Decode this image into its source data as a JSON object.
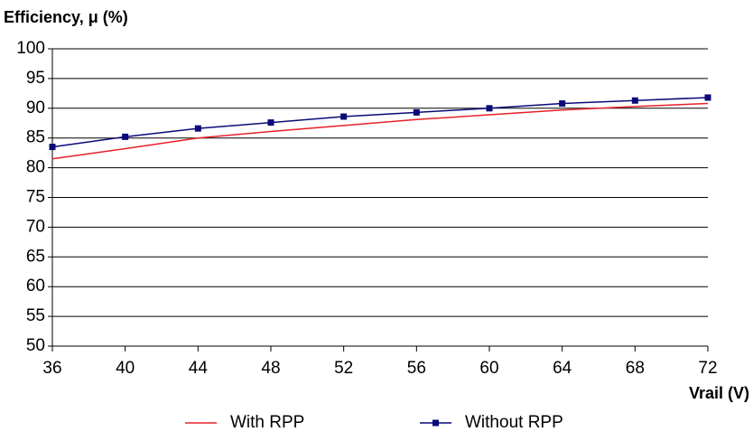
{
  "chart_data": {
    "type": "line",
    "y_label": "Efficiency, μ (%)",
    "x_label": "Vrail (V)",
    "x": [
      36,
      40,
      44,
      48,
      52,
      56,
      60,
      64,
      68,
      72
    ],
    "series": [
      {
        "name": "With RPP",
        "color": "#e8202a",
        "marker": false,
        "values": [
          81.5,
          83.2,
          85.0,
          86.1,
          87.1,
          88.1,
          88.9,
          89.7,
          90.3,
          90.8
        ]
      },
      {
        "name": "Without RPP",
        "color": "#0a0a78",
        "marker": true,
        "values": [
          83.5,
          85.2,
          86.6,
          87.6,
          88.6,
          89.3,
          90.0,
          90.8,
          91.3,
          91.8
        ]
      }
    ],
    "xlim": [
      36,
      72
    ],
    "xticks": [
      36,
      40,
      44,
      48,
      52,
      56,
      60,
      64,
      68,
      72
    ],
    "ylim": [
      50,
      100
    ],
    "yticks": [
      50,
      55,
      60,
      65,
      70,
      75,
      80,
      85,
      90,
      95,
      100
    ],
    "grid": true,
    "legend": "bottom"
  }
}
